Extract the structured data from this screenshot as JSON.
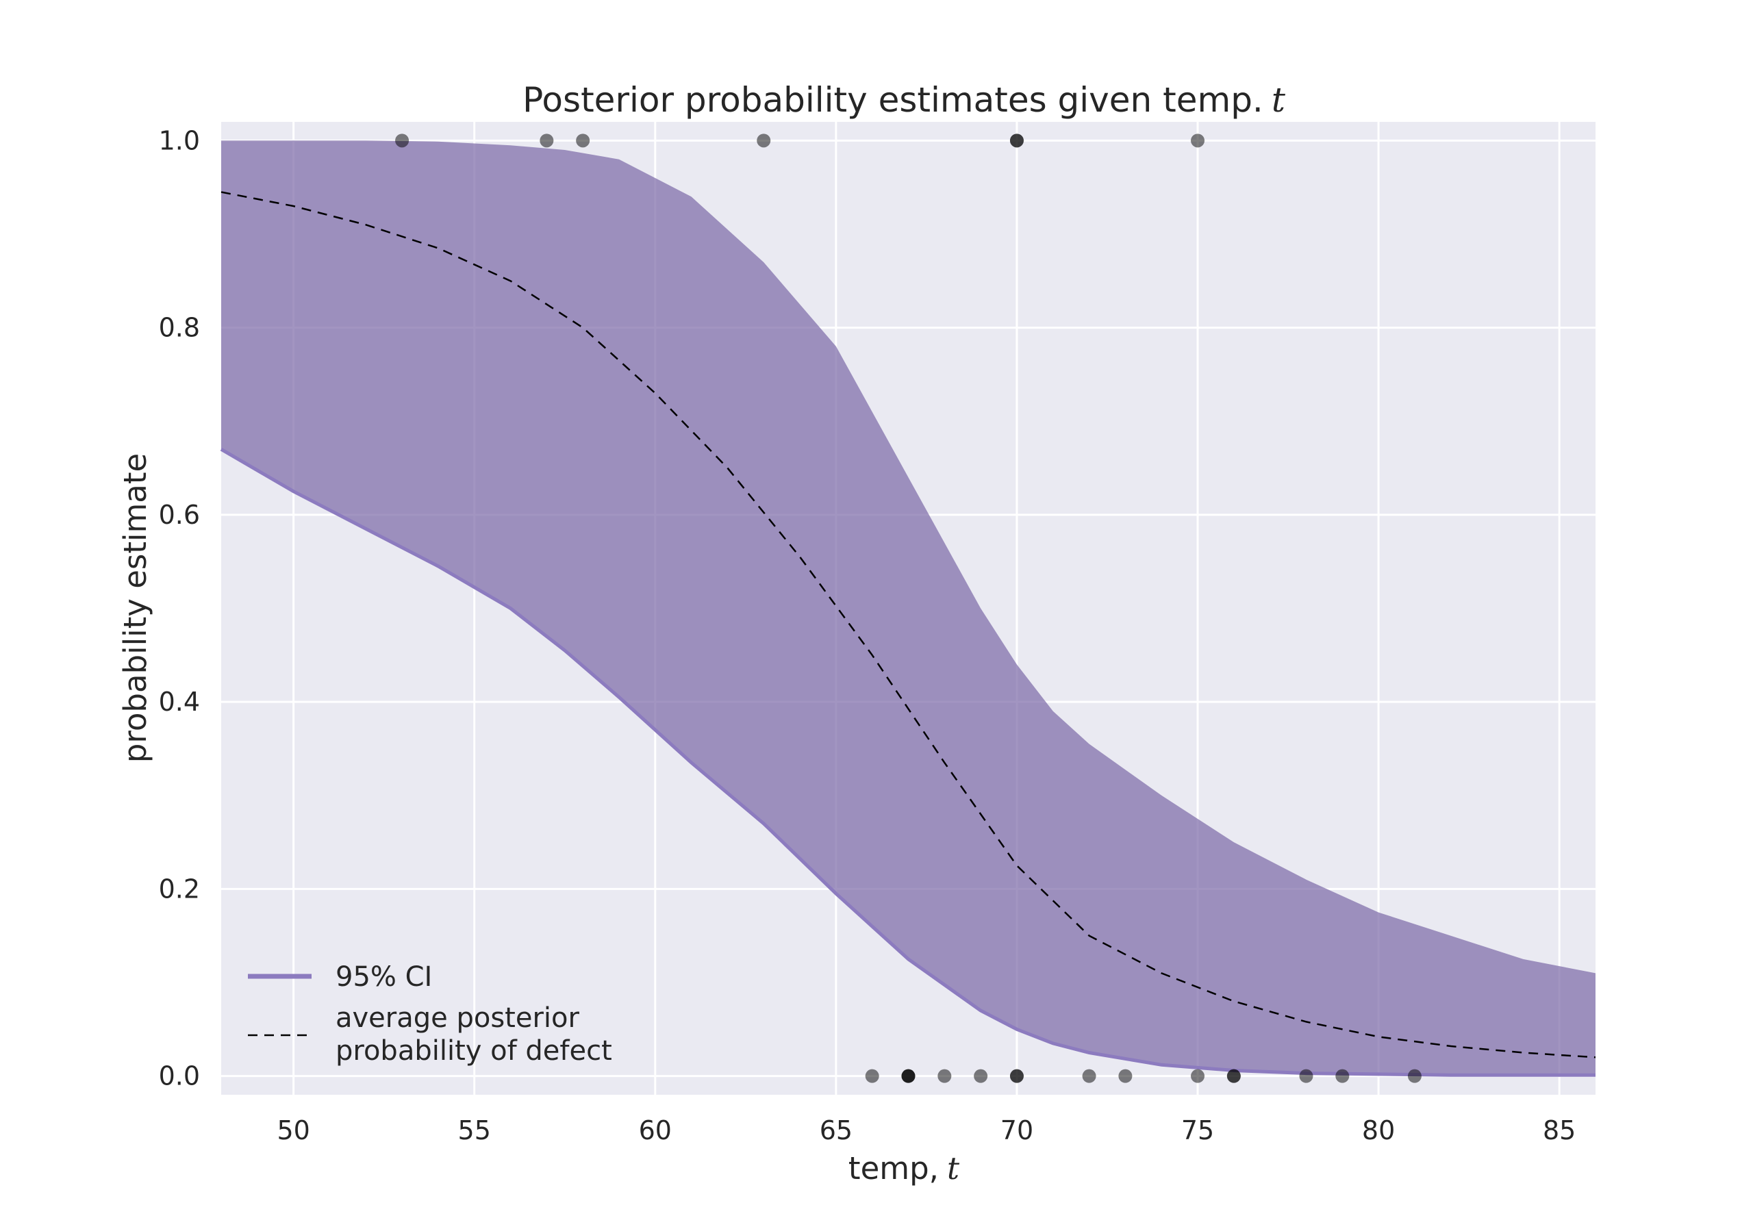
{
  "chart_data": {
    "type": "area",
    "title": "Posterior probability estimates given temp.",
    "title_var": "t",
    "xlabel": "temp,",
    "xlabel_var": "t",
    "ylabel": "probability estimate",
    "xlim": [
      48,
      86
    ],
    "ylim": [
      -0.02,
      1.02
    ],
    "x_ticks": [
      50,
      55,
      60,
      65,
      70,
      75,
      80,
      85
    ],
    "y_ticks": [
      0.0,
      0.2,
      0.4,
      0.6,
      0.8,
      1.0
    ],
    "x_tick_labels": [
      "50",
      "55",
      "60",
      "65",
      "70",
      "75",
      "80",
      "85"
    ],
    "y_tick_labels": [
      "0.0",
      "0.2",
      "0.4",
      "0.6",
      "0.8",
      "1.0"
    ],
    "grid": true,
    "legend_position": "lower-left",
    "colors": {
      "background": "#eaeaf2",
      "grid": "#ffffff",
      "ci_fill": "#7a68a6",
      "ci_edge": "#8c7bbf",
      "mean_line": "#000000",
      "points": "#000000"
    },
    "series": [
      {
        "name": "95% CI",
        "kind": "band",
        "x": [
          48,
          50,
          52,
          54,
          56,
          57.5,
          59,
          61,
          63,
          65,
          67,
          69,
          70,
          71,
          72,
          74,
          76,
          78,
          80,
          82,
          84,
          86
        ],
        "lower": [
          0.67,
          0.625,
          0.585,
          0.545,
          0.5,
          0.455,
          0.405,
          0.335,
          0.27,
          0.195,
          0.125,
          0.07,
          0.05,
          0.035,
          0.025,
          0.012,
          0.006,
          0.003,
          0.002,
          0.001,
          0.001,
          0.001
        ],
        "upper": [
          1.0,
          1.0,
          1.0,
          0.999,
          0.995,
          0.99,
          0.98,
          0.94,
          0.87,
          0.78,
          0.64,
          0.5,
          0.44,
          0.39,
          0.355,
          0.3,
          0.25,
          0.21,
          0.175,
          0.15,
          0.125,
          0.11
        ]
      },
      {
        "name": "average posterior probability of defect",
        "kind": "line",
        "x": [
          48,
          50,
          52,
          54,
          56,
          58,
          60,
          62,
          64,
          66,
          68,
          70,
          72,
          74,
          76,
          78,
          80,
          82,
          84,
          86
        ],
        "values": [
          0.945,
          0.93,
          0.91,
          0.885,
          0.85,
          0.8,
          0.73,
          0.65,
          0.555,
          0.45,
          0.335,
          0.225,
          0.15,
          0.11,
          0.08,
          0.058,
          0.042,
          0.032,
          0.025,
          0.02
        ]
      },
      {
        "kind": "scatter",
        "points": [
          {
            "x": 53,
            "y": 1
          },
          {
            "x": 57,
            "y": 1
          },
          {
            "x": 58,
            "y": 1
          },
          {
            "x": 63,
            "y": 1
          },
          {
            "x": 70,
            "y": 1
          },
          {
            "x": 70,
            "y": 1
          },
          {
            "x": 75,
            "y": 1
          },
          {
            "x": 66,
            "y": 0
          },
          {
            "x": 67,
            "y": 0
          },
          {
            "x": 67,
            "y": 0
          },
          {
            "x": 67,
            "y": 0
          },
          {
            "x": 68,
            "y": 0
          },
          {
            "x": 69,
            "y": 0
          },
          {
            "x": 70,
            "y": 0
          },
          {
            "x": 70,
            "y": 0
          },
          {
            "x": 72,
            "y": 0
          },
          {
            "x": 73,
            "y": 0
          },
          {
            "x": 75,
            "y": 0
          },
          {
            "x": 76,
            "y": 0
          },
          {
            "x": 76,
            "y": 0
          },
          {
            "x": 78,
            "y": 0
          },
          {
            "x": 79,
            "y": 0
          },
          {
            "x": 81,
            "y": 0
          }
        ]
      }
    ],
    "legend": {
      "ci_label": "95% CI",
      "mean_label_line1": "average posterior",
      "mean_label_line2": "probability of defect"
    }
  }
}
